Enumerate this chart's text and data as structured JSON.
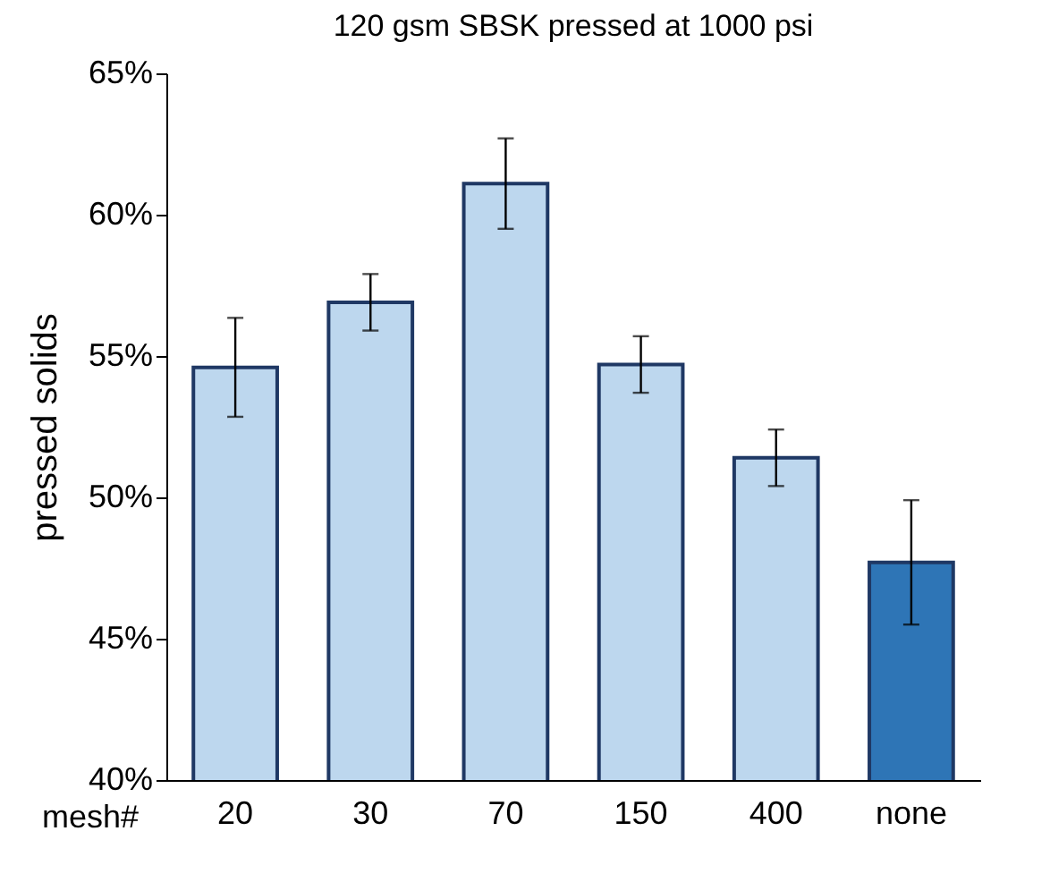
{
  "chart_data": {
    "type": "bar",
    "title": "120 gsm SBSK pressed at 1000 psi",
    "xlabel": "mesh#",
    "ylabel": "pressed solids",
    "categories": [
      "20",
      "30",
      "70",
      "150",
      "400",
      "none"
    ],
    "values": [
      54.6,
      56.9,
      61.1,
      54.7,
      51.4,
      47.7
    ],
    "errors": [
      1.75,
      1.0,
      1.6,
      1.0,
      1.0,
      2.2
    ],
    "colors": [
      "#bdd7ee",
      "#bdd7ee",
      "#bdd7ee",
      "#bdd7ee",
      "#bdd7ee",
      "#2e75b6"
    ],
    "ylim": [
      40,
      65
    ],
    "yticks": [
      {
        "value": 40,
        "label": "40%"
      },
      {
        "value": 45,
        "label": "45%"
      },
      {
        "value": 50,
        "label": "50%"
      },
      {
        "value": 55,
        "label": "55%"
      },
      {
        "value": 60,
        "label": "60%"
      },
      {
        "value": 65,
        "label": "65%"
      }
    ],
    "grid": false,
    "legend": false
  }
}
